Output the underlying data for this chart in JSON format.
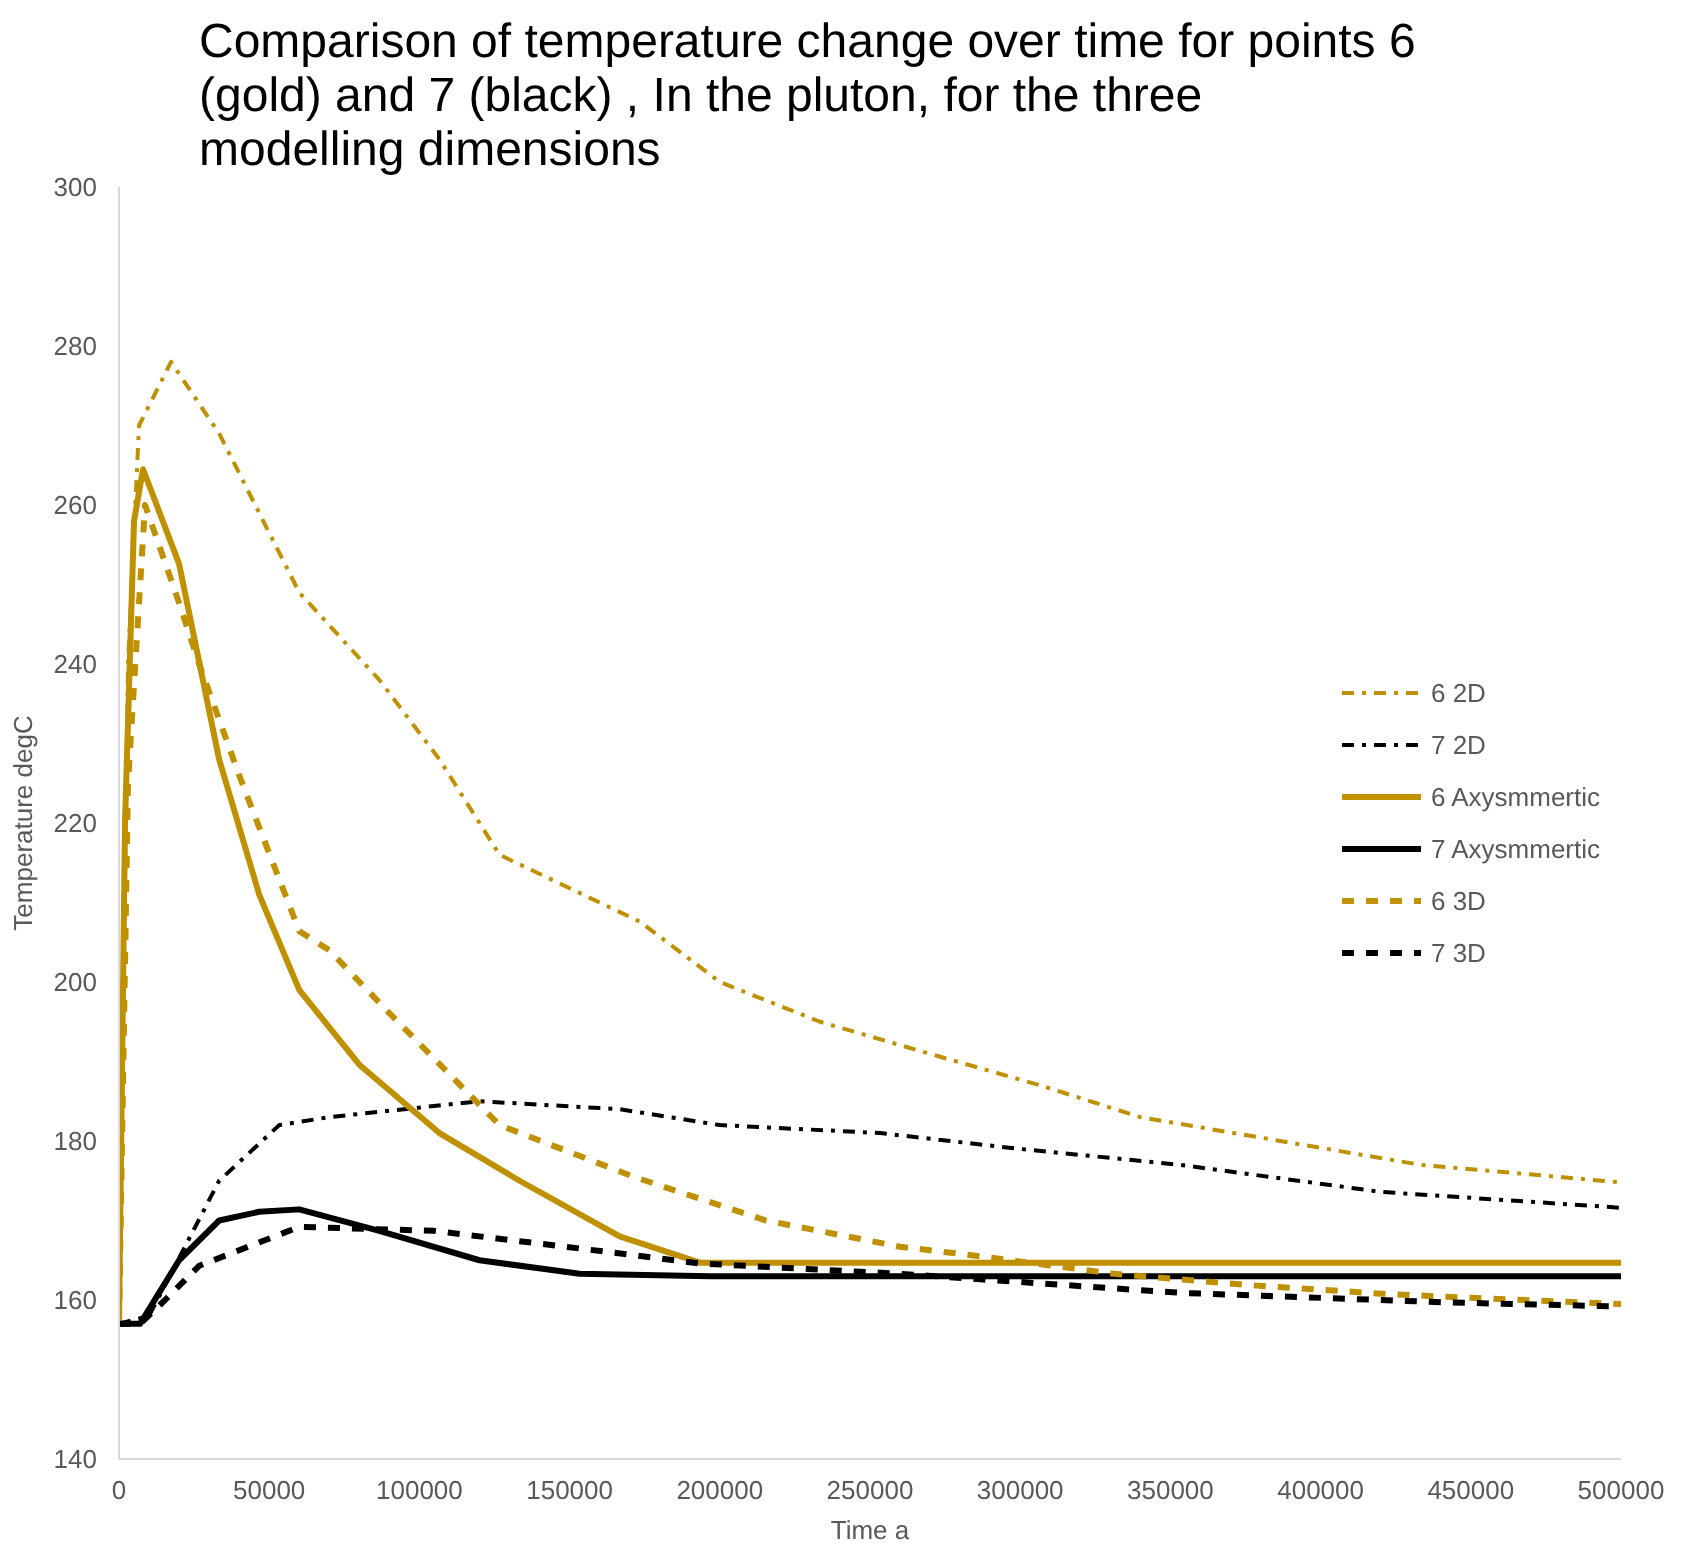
{
  "chart_data": {
    "type": "line",
    "title": "Comparison of temperature change over time for points 6 (gold) and 7 (black) , In the pluton, for the three modelling dimensions",
    "xlabel": "Time a",
    "ylabel": "Temperature degC",
    "xlim": [
      0,
      500000
    ],
    "xticks": [
      0,
      50000,
      100000,
      150000,
      200000,
      250000,
      300000,
      350000,
      400000,
      450000,
      500000
    ],
    "ylim": [
      140,
      300
    ],
    "yticks": [
      140,
      160,
      180,
      200,
      220,
      240,
      260,
      280,
      300
    ],
    "grid": false,
    "legend": "right",
    "series": [
      {
        "name": "6 2D",
        "color": "#bf9000",
        "line_style": "dashdot",
        "x": [
          0,
          3000,
          6667,
          17333,
          33333,
          60000,
          86667,
          106667,
          126667,
          173333,
          200000,
          233333,
          273333,
          306667,
          340000,
          386667,
          433333,
          500000
        ],
        "values": [
          157,
          240,
          270,
          278,
          269,
          249,
          238,
          228,
          216,
          207.6,
          200,
          195,
          190.6,
          187,
          183,
          180,
          177,
          174.8
        ]
      },
      {
        "name": "7 2D",
        "color": "#000000",
        "line_style": "dashdot",
        "x": [
          0,
          10000,
          33333,
          53333,
          70000,
          120000,
          166667,
          200000,
          253333,
          300000,
          353333,
          420000,
          500000
        ],
        "values": [
          157,
          158,
          175,
          182,
          183,
          185,
          184,
          182,
          181,
          179,
          177,
          173.6,
          171.6
        ]
      },
      {
        "name": "6 Axysmmertic",
        "color": "#bf9000",
        "line_style": "solid",
        "x": [
          0,
          2000,
          5000,
          8000,
          20000,
          33333,
          46667,
          60000,
          80000,
          106667,
          133333,
          166667,
          193333,
          500000
        ],
        "values": [
          157,
          220,
          258,
          264.5,
          252.6,
          228,
          211,
          199,
          189.6,
          181,
          175,
          168,
          164.7,
          164.7
        ]
      },
      {
        "name": "7 Axysmmertic",
        "color": "#000000",
        "line_style": "solid",
        "x": [
          0,
          7000,
          20000,
          33333,
          46667,
          60000,
          86667,
          120000,
          153333,
          196667,
          500000
        ],
        "values": [
          157,
          157,
          165,
          170,
          171.1,
          171.4,
          168.7,
          165,
          163.3,
          163,
          163
        ]
      },
      {
        "name": "6 3D",
        "color": "#bf9000",
        "line_style": "dashed",
        "x": [
          0,
          3000,
          8667,
          20000,
          26667,
          40000,
          60000,
          70000,
          88667,
          126667,
          171333,
          215333,
          260000,
          286667,
          331333,
          375333,
          420000,
          442000,
          500000
        ],
        "values": [
          157,
          225,
          260,
          247.7,
          240,
          226,
          206.4,
          204,
          196.6,
          182,
          175.5,
          170,
          166.7,
          165.5,
          163.3,
          161.9,
          160.8,
          160.4,
          159.5
        ]
      },
      {
        "name": "7 3D",
        "color": "#000000",
        "line_style": "dashed",
        "x": [
          0,
          7000,
          15333,
          26667,
          60000,
          104667,
          148667,
          193333,
          260000,
          286667,
          353333,
          442000,
          498000
        ],
        "values": [
          157,
          157,
          160,
          164.3,
          169.2,
          168.7,
          166.7,
          164.6,
          163.3,
          162.6,
          160.9,
          159.7,
          159.2
        ]
      }
    ]
  }
}
